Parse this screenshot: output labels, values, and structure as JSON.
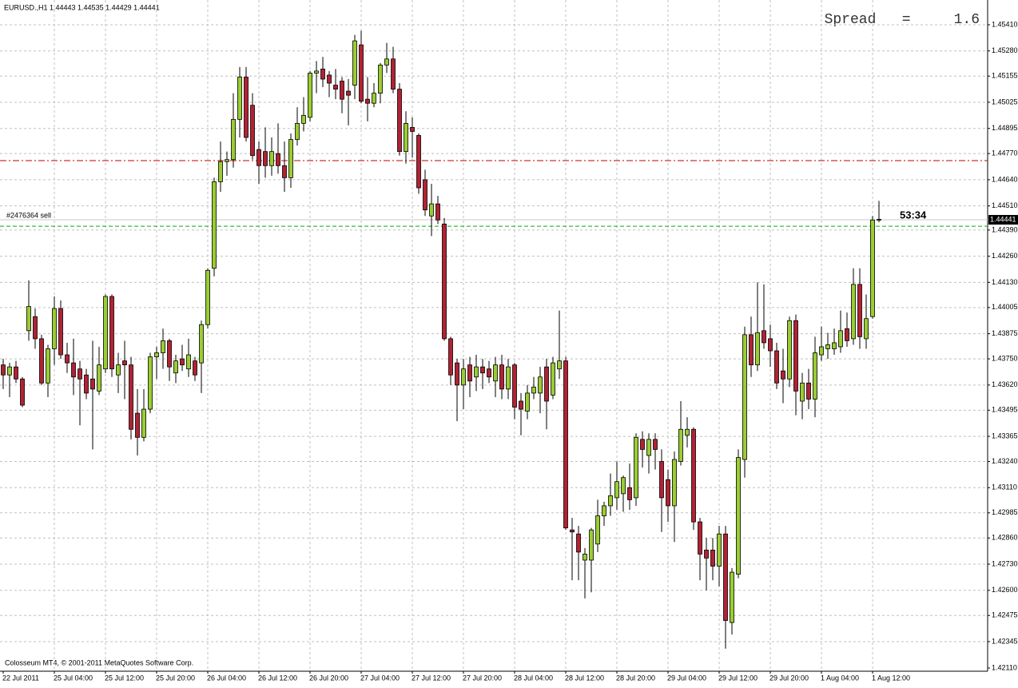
{
  "chart_data": {
    "type": "candlestick",
    "title": "EURUSD.,H1  1.44443 1.44535 1.44429 1.44441",
    "spread_text": "Spread   =     1.6",
    "footer": "Colosseum MT4, © 2001-2011 MetaQuotes Software Corp.",
    "timer": "53:34",
    "categories": [
      "22 Jul 2011",
      null,
      null,
      null,
      null,
      null,
      null,
      null,
      "25 Jul 04:00",
      null,
      null,
      null,
      null,
      null,
      null,
      null,
      "25 Jul 12:00",
      null,
      null,
      null,
      null,
      null,
      null,
      null,
      "25 Jul 20:00",
      null,
      null,
      null,
      null,
      null,
      null,
      null,
      "26 Jul 04:00",
      null,
      null,
      null,
      null,
      null,
      null,
      null,
      "26 Jul 12:00",
      null,
      null,
      null,
      null,
      null,
      null,
      null,
      "26 Jul 20:00",
      null,
      null,
      null,
      null,
      null,
      null,
      null,
      "27 Jul 04:00",
      null,
      null,
      null,
      null,
      null,
      null,
      null,
      "27 Jul 12:00",
      null,
      null,
      null,
      null,
      null,
      null,
      null,
      "27 Jul 20:00",
      null,
      null,
      null,
      null,
      null,
      null,
      null,
      "28 Jul 04:00",
      null,
      null,
      null,
      null,
      null,
      null,
      null,
      "28 Jul 12:00",
      null,
      null,
      null,
      null,
      null,
      null,
      null,
      "28 Jul 20:00",
      null,
      null,
      null,
      null,
      null,
      null,
      null,
      "29 Jul 04:00",
      null,
      null,
      null,
      null,
      null,
      null,
      null,
      "29 Jul 12:00",
      null,
      null,
      null,
      null,
      null,
      null,
      null,
      "29 Jul 20:00",
      null,
      null,
      null,
      null,
      null,
      null,
      null,
      "1 Aug 04:00",
      null,
      null,
      null,
      null,
      null,
      null,
      null,
      "1 Aug 12:00",
      null
    ],
    "open": [
      1.4372,
      1.4367,
      1.4371,
      1.4365,
      1.4389,
      1.4396,
      1.4385,
      1.4363,
      1.438,
      1.44,
      1.4377,
      1.4373,
      1.437,
      1.4367,
      1.4365,
      1.4359,
      1.437,
      1.4406,
      1.4367,
      1.4374,
      1.4372,
      1.4348,
      1.4336,
      1.435,
      1.4376,
      1.4378,
      1.4384,
      1.4368,
      1.4375,
      1.437,
      1.4374,
      1.4373,
      1.4392,
      1.442,
      1.4463,
      1.4473,
      1.4474,
      1.4494,
      1.4515,
      1.4501,
      1.4479,
      1.4478,
      1.4471,
      1.4477,
      1.4471,
      1.4465,
      1.4484,
      1.4492,
      1.4495,
      1.4517,
      1.4519,
      1.4516,
      1.4511,
      1.4513,
      1.4508,
      1.4511,
      1.4531,
      1.4504,
      1.4502,
      1.4507,
      1.4521,
      1.4524,
      1.4509,
      1.4478,
      1.449,
      1.4486,
      1.4464,
      1.4446,
      1.4452,
      1.4442,
      1.4385,
      1.4373,
      1.4362,
      1.4372,
      1.4366,
      1.4371,
      1.437,
      1.4364,
      1.4372,
      1.436,
      1.4372,
      1.4354,
      1.4349,
      1.4358,
      1.4358,
      1.4371,
      1.4357,
      1.437,
      1.4374,
      1.429,
      1.4288,
      1.4275,
      1.4275,
      1.4283,
      1.4297,
      1.4302,
      1.4306,
      1.4308,
      1.4311,
      1.4306,
      1.4335,
      1.4327,
      1.4335,
      1.4324,
      1.4315,
      1.4302,
      1.4324,
      1.4337,
      1.434,
      1.4294,
      1.428,
      1.428,
      1.4272,
      1.4288,
      1.4244,
      1.4268,
      1.4325,
      1.4387,
      1.4372,
      1.4389,
      1.4385,
      1.4379,
      1.4369,
      1.4365,
      1.4394,
      1.4354,
      1.4363,
      1.4355,
      1.4377,
      1.438,
      1.438,
      1.4381,
      1.439,
      1.4385,
      1.4412,
      1.4385,
      1.4396,
      1.44443
    ],
    "high": [
      1.4375,
      1.4373,
      1.4374,
      1.4366,
      1.4414,
      1.44,
      1.4387,
      1.4382,
      1.4406,
      1.4404,
      1.4383,
      1.4385,
      1.4374,
      1.437,
      1.4384,
      1.4381,
      1.4407,
      1.4407,
      1.4378,
      1.4384,
      1.4376,
      1.436,
      1.436,
      1.4378,
      1.4381,
      1.439,
      1.4385,
      1.4377,
      1.4382,
      1.4385,
      1.4376,
      1.4394,
      1.442,
      1.4465,
      1.4483,
      1.4478,
      1.4507,
      1.452,
      1.452,
      1.4507,
      1.4483,
      1.449,
      1.4485,
      1.4492,
      1.4483,
      1.4487,
      1.45,
      1.4505,
      1.4518,
      1.4523,
      1.4525,
      1.4518,
      1.4519,
      1.4515,
      1.4514,
      1.4536,
      1.4538,
      1.4515,
      1.4512,
      1.4522,
      1.4532,
      1.453,
      1.4512,
      1.4498,
      1.4495,
      1.4487,
      1.4469,
      1.4462,
      1.4456,
      1.4445,
      1.4386,
      1.4375,
      1.4375,
      1.4376,
      1.4377,
      1.4375,
      1.4374,
      1.4376,
      1.4377,
      1.4375,
      1.4373,
      1.4358,
      1.4362,
      1.4366,
      1.4371,
      1.4375,
      1.4376,
      1.4399,
      1.4376,
      1.4296,
      1.4292,
      1.4281,
      1.4291,
      1.4305,
      1.4304,
      1.4318,
      1.4324,
      1.4317,
      1.4323,
      1.4338,
      1.4339,
      1.4338,
      1.4338,
      1.433,
      1.432,
      1.4329,
      1.4354,
      1.4346,
      1.4341,
      1.4296,
      1.4286,
      1.4286,
      1.4292,
      1.4292,
      1.4271,
      1.433,
      1.4391,
      1.4396,
      1.4413,
      1.4412,
      1.4392,
      1.4383,
      1.438,
      1.4396,
      1.4397,
      1.4368,
      1.437,
      1.4386,
      1.4391,
      1.4388,
      1.439,
      1.4399,
      1.4398,
      1.442,
      1.442,
      1.4407,
      1.4446,
      1.44535
    ],
    "low": [
      1.436,
      1.4356,
      1.4363,
      1.4351,
      1.4384,
      1.438,
      1.4362,
      1.4356,
      1.4372,
      1.4375,
      1.4368,
      1.4357,
      1.4342,
      1.4355,
      1.433,
      1.4357,
      1.4368,
      1.4366,
      1.4358,
      1.4355,
      1.4335,
      1.4327,
      1.4334,
      1.4348,
      1.4365,
      1.437,
      1.4364,
      1.4363,
      1.4369,
      1.4366,
      1.4364,
      1.4358,
      1.439,
      1.4416,
      1.4458,
      1.4466,
      1.447,
      1.4485,
      1.4483,
      1.4474,
      1.4462,
      1.4465,
      1.4466,
      1.4467,
      1.4458,
      1.446,
      1.4481,
      1.4488,
      1.4493,
      1.4507,
      1.451,
      1.4505,
      1.4504,
      1.4497,
      1.4491,
      1.4504,
      1.4502,
      1.4493,
      1.45,
      1.4502,
      1.4517,
      1.4507,
      1.4476,
      1.4472,
      1.4475,
      1.4457,
      1.4446,
      1.4436,
      1.4442,
      1.4384,
      1.4362,
      1.4344,
      1.435,
      1.4356,
      1.4359,
      1.436,
      1.4363,
      1.4356,
      1.4355,
      1.4355,
      1.4345,
      1.4337,
      1.4345,
      1.4355,
      1.4348,
      1.434,
      1.4355,
      1.4365,
      1.429,
      1.4265,
      1.4265,
      1.4256,
      1.4259,
      1.4279,
      1.4292,
      1.4297,
      1.43,
      1.4299,
      1.43,
      1.4302,
      1.4321,
      1.4318,
      1.432,
      1.4289,
      1.4294,
      1.4284,
      1.4322,
      1.4331,
      1.429,
      1.4265,
      1.426,
      1.4265,
      1.4262,
      1.4231,
      1.4238,
      1.4266,
      1.4316,
      1.4366,
      1.4369,
      1.438,
      1.4371,
      1.436,
      1.4353,
      1.4361,
      1.4347,
      1.4345,
      1.435,
      1.4346,
      1.4374,
      1.4375,
      1.4377,
      1.4378,
      1.4381,
      1.4382,
      1.438,
      1.438,
      1.4395,
      1.44429
    ],
    "close": [
      1.4367,
      1.4371,
      1.4365,
      1.4352,
      1.4401,
      1.4385,
      1.4363,
      1.438,
      1.44,
      1.4377,
      1.4373,
      1.4366,
      1.4365,
      1.4358,
      1.436,
      1.4372,
      1.4406,
      1.437,
      1.4372,
      1.4372,
      1.434,
      1.4336,
      1.435,
      1.4376,
      1.4378,
      1.4384,
      1.4371,
      1.4374,
      1.4372,
      1.4377,
      1.4367,
      1.4392,
      1.4419,
      1.4463,
      1.4473,
      1.4474,
      1.4494,
      1.4515,
      1.4485,
      1.4476,
      1.4471,
      1.4471,
      1.4478,
      1.4471,
      1.4465,
      1.4484,
      1.4492,
      1.4496,
      1.4517,
      1.4518,
      1.4514,
      1.4512,
      1.4509,
      1.4504,
      1.4506,
      1.4533,
      1.4503,
      1.4502,
      1.4507,
      1.4521,
      1.4524,
      1.4509,
      1.4478,
      1.4492,
      1.4488,
      1.446,
      1.4449,
      1.4452,
      1.4444,
      1.4385,
      1.4367,
      1.4362,
      1.437,
      1.4364,
      1.4371,
      1.4368,
      1.4366,
      1.4372,
      1.436,
      1.4371,
      1.4351,
      1.435,
      1.4358,
      1.4361,
      1.4366,
      1.4354,
      1.4373,
      1.4374,
      1.4291,
      1.4289,
      1.4279,
      1.4278,
      1.429,
      1.4297,
      1.4302,
      1.4307,
      1.4314,
      1.4316,
      1.4305,
      1.4336,
      1.433,
      1.4335,
      1.433,
      1.4306,
      1.4302,
      1.4325,
      1.434,
      1.434,
      1.4294,
      1.4278,
      1.4276,
      1.4272,
      1.4288,
      1.4245,
      1.4269,
      1.4326,
      1.4387,
      1.4372,
      1.4388,
      1.4383,
      1.4379,
      1.4363,
      1.4365,
      1.4394,
      1.4359,
      1.4363,
      1.4355,
      1.4378,
      1.4381,
      1.4382,
      1.4383,
      1.4389,
      1.4384,
      1.4412,
      1.4386,
      1.4395,
      1.4444,
      1.44441
    ],
    "up_color": "#9acd32",
    "down_color": "#b22234",
    "ylim": [
      1.42198,
      1.45533
    ],
    "yticks": [
      {
        "value": 1.4541,
        "label": "1.45410"
      },
      {
        "value": 1.4528,
        "label": "1.45280"
      },
      {
        "value": 1.45155,
        "label": "1.45155"
      },
      {
        "value": 1.45025,
        "label": "1.45025"
      },
      {
        "value": 1.44895,
        "label": "1.44895"
      },
      {
        "value": 1.4477,
        "label": "1.44770"
      },
      {
        "value": 1.4464,
        "label": "1.44640"
      },
      {
        "value": 1.4451,
        "label": "1.44510"
      },
      {
        "value": 1.4439,
        "label": "1.44390"
      },
      {
        "value": 1.4426,
        "label": "1.44260"
      },
      {
        "value": 1.4413,
        "label": "1.44130"
      },
      {
        "value": 1.44005,
        "label": "1.44005"
      },
      {
        "value": 1.43875,
        "label": "1.43875"
      },
      {
        "value": 1.4375,
        "label": "1.43750"
      },
      {
        "value": 1.4362,
        "label": "1.43620"
      },
      {
        "value": 1.43495,
        "label": "1.43495"
      },
      {
        "value": 1.43365,
        "label": "1.43365"
      },
      {
        "value": 1.4324,
        "label": "1.43240"
      },
      {
        "value": 1.4311,
        "label": "1.43110"
      },
      {
        "value": 1.42985,
        "label": "1.42985"
      },
      {
        "value": 1.4286,
        "label": "1.42860"
      },
      {
        "value": 1.4273,
        "label": "1.42730"
      },
      {
        "value": 1.426,
        "label": "1.42600"
      },
      {
        "value": 1.42475,
        "label": "1.42475"
      },
      {
        "value": 1.42345,
        "label": "1.42345"
      },
      {
        "value": 1.4211,
        "label": "1.42110"
      }
    ],
    "grid": true,
    "levels": [
      {
        "value": 1.44735,
        "color": "#c00000",
        "style": "dashdot"
      },
      {
        "value": 1.44409,
        "color": "#00b000",
        "style": "dashed"
      },
      {
        "value": 1.44441,
        "color": "#c8c8c8",
        "style": "solid",
        "label": "#2476364 sell"
      }
    ],
    "current_price": 1.44441
  }
}
